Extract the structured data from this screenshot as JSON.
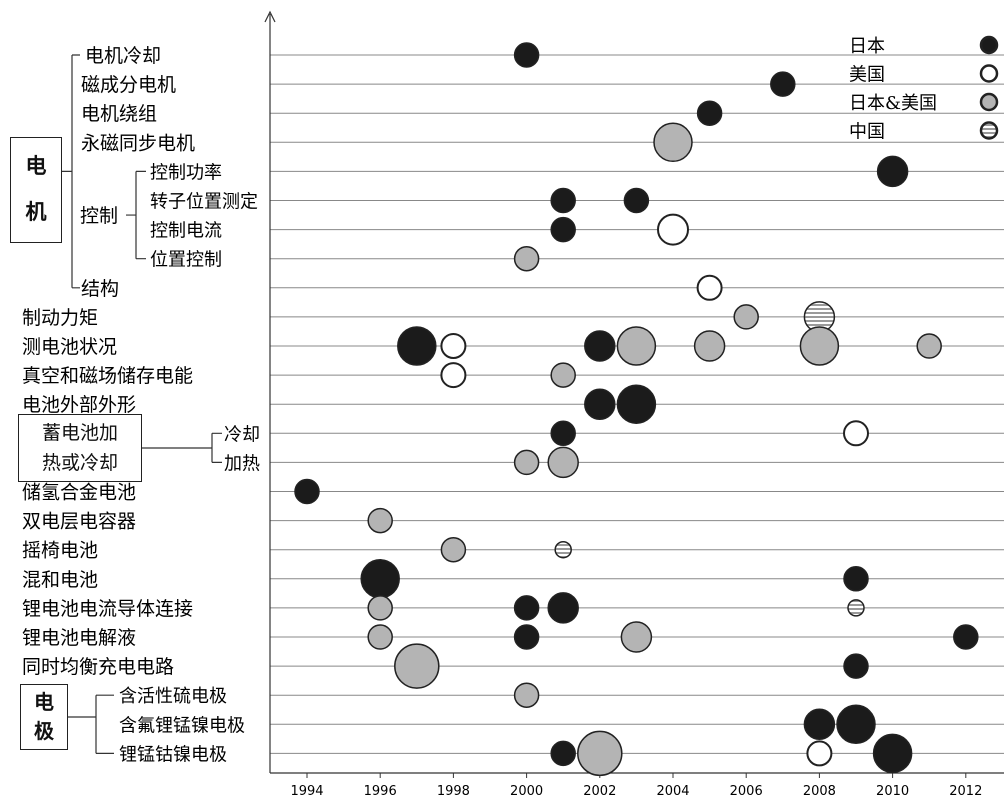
{
  "chart_data": {
    "type": "scatter",
    "x_ticks": [
      "1994",
      "1996",
      "1998",
      "2000",
      "2002",
      "2004",
      "2006",
      "2008",
      "2010",
      "2012"
    ],
    "xlim": [
      1993,
      2013
    ],
    "legend": {
      "placement": "top-right",
      "items": [
        {
          "label": "日本",
          "key": "jp"
        },
        {
          "label": "美国",
          "key": "us"
        },
        {
          "label": "日本&美国",
          "key": "jpus"
        },
        {
          "label": "中国",
          "key": "cn"
        }
      ]
    },
    "colors": {
      "jp": "#1b1b1b",
      "us": "#ffffff",
      "jpus": "#b4b4b4",
      "cn": "#cfcfcf",
      "stroke": "#222222",
      "grid": "#888888"
    },
    "groups": [
      {
        "label": "电\n机",
        "key": "motor"
      },
      {
        "label": "控制",
        "key": "control"
      },
      {
        "label": "蓄电池加\n热或冷却",
        "key": "heatcool"
      },
      {
        "label": "电\n极",
        "key": "electrode"
      }
    ],
    "rows": [
      {
        "label": "电机冷却"
      },
      {
        "label": "磁成分电机"
      },
      {
        "label": "电机绕组"
      },
      {
        "label": "永磁同步电机"
      },
      {
        "label": "控制功率"
      },
      {
        "label": "转子位置测定"
      },
      {
        "label": "控制电流"
      },
      {
        "label": "位置控制"
      },
      {
        "label": "结构"
      },
      {
        "label": "制动力矩"
      },
      {
        "label": "测电池状况"
      },
      {
        "label": "真空和磁场储存电能"
      },
      {
        "label": "电池外部外形"
      },
      {
        "label": "冷却"
      },
      {
        "label": "加热"
      },
      {
        "label": "储氢合金电池"
      },
      {
        "label": "双电层电容器"
      },
      {
        "label": "摇椅电池"
      },
      {
        "label": "混和电池"
      },
      {
        "label": "锂电池电流导体连接"
      },
      {
        "label": "锂电池电解液"
      },
      {
        "label": "同时均衡充电电路"
      },
      {
        "label": "含活性硫电极"
      },
      {
        "label": "含氟锂锰镍电极"
      },
      {
        "label": "锂锰钴镍电极"
      }
    ],
    "points": [
      {
        "row": 0,
        "year": 2000,
        "country": "jp",
        "size": 1
      },
      {
        "row": 1,
        "year": 2007,
        "country": "jp",
        "size": 1
      },
      {
        "row": 2,
        "year": 2005,
        "country": "jp",
        "size": 1
      },
      {
        "row": 3,
        "year": 2004,
        "country": "jpus",
        "size": 3
      },
      {
        "row": 4,
        "year": 2010,
        "country": "jp",
        "size": 2
      },
      {
        "row": 5,
        "year": 2001,
        "country": "jp",
        "size": 1
      },
      {
        "row": 5,
        "year": 2003,
        "country": "jp",
        "size": 1
      },
      {
        "row": 6,
        "year": 2001,
        "country": "jp",
        "size": 1
      },
      {
        "row": 6,
        "year": 2004,
        "country": "us",
        "size": 2
      },
      {
        "row": 7,
        "year": 2000,
        "country": "jpus",
        "size": 1
      },
      {
        "row": 8,
        "year": 2005,
        "country": "us",
        "size": 1
      },
      {
        "row": 9,
        "year": 2006,
        "country": "jpus",
        "size": 1
      },
      {
        "row": 9,
        "year": 2008,
        "country": "cn",
        "size": 2
      },
      {
        "row": 10,
        "year": 1997,
        "country": "jp",
        "size": 3
      },
      {
        "row": 10,
        "year": 1998,
        "country": "us",
        "size": 1
      },
      {
        "row": 10,
        "year": 2002,
        "country": "jp",
        "size": 2
      },
      {
        "row": 10,
        "year": 2003,
        "country": "jpus",
        "size": 3
      },
      {
        "row": 10,
        "year": 2005,
        "country": "jpus",
        "size": 2
      },
      {
        "row": 10,
        "year": 2008,
        "country": "jpus",
        "size": 3
      },
      {
        "row": 10,
        "year": 2011,
        "country": "jpus",
        "size": 1
      },
      {
        "row": 11,
        "year": 1998,
        "country": "us",
        "size": 1
      },
      {
        "row": 11,
        "year": 2001,
        "country": "jpus",
        "size": 1
      },
      {
        "row": 12,
        "year": 2002,
        "country": "jp",
        "size": 2
      },
      {
        "row": 12,
        "year": 2003,
        "country": "jp",
        "size": 3
      },
      {
        "row": 13,
        "year": 2001,
        "country": "jp",
        "size": 1
      },
      {
        "row": 13,
        "year": 2009,
        "country": "us",
        "size": 1
      },
      {
        "row": 14,
        "year": 2000,
        "country": "jpus",
        "size": 1
      },
      {
        "row": 14,
        "year": 2001,
        "country": "jpus",
        "size": 2
      },
      {
        "row": 15,
        "year": 1994,
        "country": "jp",
        "size": 1
      },
      {
        "row": 16,
        "year": 1996,
        "country": "jpus",
        "size": 1
      },
      {
        "row": 17,
        "year": 1998,
        "country": "jpus",
        "size": 1
      },
      {
        "row": 17,
        "year": 2001,
        "country": "cn",
        "size": 0
      },
      {
        "row": 18,
        "year": 1996,
        "country": "jp",
        "size": 3
      },
      {
        "row": 18,
        "year": 2009,
        "country": "jp",
        "size": 1
      },
      {
        "row": 19,
        "year": 1996,
        "country": "jpus",
        "size": 1
      },
      {
        "row": 19,
        "year": 2000,
        "country": "jp",
        "size": 1
      },
      {
        "row": 19,
        "year": 2001,
        "country": "jp",
        "size": 2
      },
      {
        "row": 19,
        "year": 2009,
        "country": "cn",
        "size": 0
      },
      {
        "row": 20,
        "year": 1996,
        "country": "jpus",
        "size": 1
      },
      {
        "row": 20,
        "year": 2000,
        "country": "jp",
        "size": 1
      },
      {
        "row": 20,
        "year": 2003,
        "country": "jpus",
        "size": 2
      },
      {
        "row": 20,
        "year": 2012,
        "country": "jp",
        "size": 1
      },
      {
        "row": 21,
        "year": 1997,
        "country": "jpus",
        "size": 4
      },
      {
        "row": 21,
        "year": 2009,
        "country": "jp",
        "size": 1
      },
      {
        "row": 22,
        "year": 2000,
        "country": "jpus",
        "size": 1
      },
      {
        "row": 23,
        "year": 2008,
        "country": "jp",
        "size": 2
      },
      {
        "row": 23,
        "year": 2009,
        "country": "jp",
        "size": 3
      },
      {
        "row": 24,
        "year": 2001,
        "country": "jp",
        "size": 1
      },
      {
        "row": 24,
        "year": 2002,
        "country": "jpus",
        "size": 4
      },
      {
        "row": 24,
        "year": 2008,
        "country": "us",
        "size": 1
      },
      {
        "row": 24,
        "year": 2010,
        "country": "jp",
        "size": 3
      }
    ]
  }
}
